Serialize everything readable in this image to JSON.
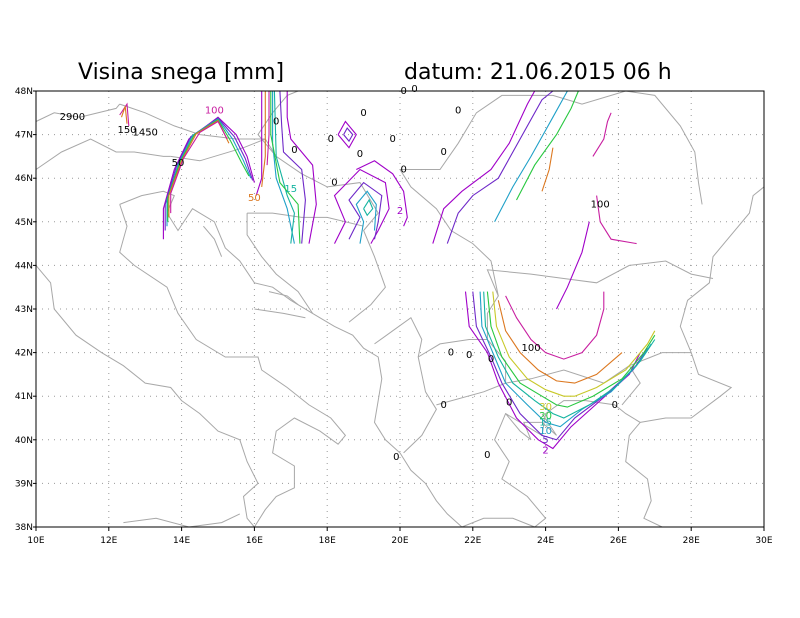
{
  "title": {
    "left": "Visina snega [mm]",
    "right": "datum: 21.06.2015   06 h"
  },
  "colors": {
    "c2": "#a000c8",
    "c5": "#6e28c8",
    "c10": "#1fa0c8",
    "c15": "#14b4a0",
    "c20": "#28c840",
    "c30": "#c8c828",
    "c50": "#dc7820",
    "c100": "#c81ea0",
    "coast": "#a8a8a8",
    "grid": "#9a9a9a",
    "frame": "#000000"
  },
  "axes": {
    "lon_labels": [
      "10E",
      "12E",
      "14E",
      "16E",
      "18E",
      "20E",
      "22E",
      "24E",
      "26E",
      "28E",
      "30E"
    ],
    "lat_labels": [
      "38N",
      "39N",
      "40N",
      "41N",
      "42N",
      "43N",
      "44N",
      "45N",
      "46N",
      "47N",
      "48N"
    ]
  },
  "contour_labels": [
    {
      "text": "2900",
      "lon": 11.0,
      "lat": 47.4,
      "color": "#000000"
    },
    {
      "text": "150",
      "lon": 12.5,
      "lat": 47.1,
      "color": "#000000"
    },
    {
      "text": "1450",
      "lon": 13.0,
      "lat": 47.05,
      "color": "#000000"
    },
    {
      "text": "100",
      "lon": 14.9,
      "lat": 47.55,
      "color": "#c81ea0"
    },
    {
      "text": "50",
      "lon": 13.9,
      "lat": 46.35,
      "color": "#000000"
    },
    {
      "text": "50",
      "lon": 16.0,
      "lat": 45.55,
      "color": "#dc7820"
    },
    {
      "text": "15",
      "lon": 17.0,
      "lat": 45.75,
      "color": "#14b4a0"
    },
    {
      "text": "0",
      "lon": 16.6,
      "lat": 47.3,
      "color": "#000000"
    },
    {
      "text": "0",
      "lon": 17.1,
      "lat": 46.65,
      "color": "#000000"
    },
    {
      "text": "0",
      "lon": 18.1,
      "lat": 46.9,
      "color": "#000000"
    },
    {
      "text": "0",
      "lon": 18.9,
      "lat": 46.55,
      "color": "#000000"
    },
    {
      "text": "0",
      "lon": 19.0,
      "lat": 47.5,
      "color": "#000000"
    },
    {
      "text": "0",
      "lon": 19.8,
      "lat": 46.9,
      "color": "#000000"
    },
    {
      "text": "0",
      "lon": 20.1,
      "lat": 48.0,
      "color": "#000000"
    },
    {
      "text": "0",
      "lon": 20.4,
      "lat": 48.05,
      "color": "#000000"
    },
    {
      "text": "0",
      "lon": 21.6,
      "lat": 47.55,
      "color": "#000000"
    },
    {
      "text": "0",
      "lon": 21.2,
      "lat": 46.6,
      "color": "#000000"
    },
    {
      "text": "0",
      "lon": 20.1,
      "lat": 46.2,
      "color": "#000000"
    },
    {
      "text": "0",
      "lon": 18.2,
      "lat": 45.9,
      "color": "#000000"
    },
    {
      "text": "2",
      "lon": 20.0,
      "lat": 45.25,
      "color": "#a000c8"
    },
    {
      "text": "100",
      "lon": 25.5,
      "lat": 45.4,
      "color": "#000000"
    },
    {
      "text": "100",
      "lon": 23.6,
      "lat": 42.1,
      "color": "#000000"
    },
    {
      "text": "0",
      "lon": 21.4,
      "lat": 42.0,
      "color": "#000000"
    },
    {
      "text": "0",
      "lon": 21.9,
      "lat": 41.95,
      "color": "#000000"
    },
    {
      "text": "0",
      "lon": 22.5,
      "lat": 41.85,
      "color": "#000000"
    },
    {
      "text": "0",
      "lon": 23.0,
      "lat": 40.85,
      "color": "#000000"
    },
    {
      "text": "0",
      "lon": 21.2,
      "lat": 40.8,
      "color": "#000000"
    },
    {
      "text": "0",
      "lon": 19.9,
      "lat": 39.6,
      "color": "#000000"
    },
    {
      "text": "0",
      "lon": 22.4,
      "lat": 39.65,
      "color": "#000000"
    },
    {
      "text": "0",
      "lon": 25.9,
      "lat": 40.8,
      "color": "#000000"
    },
    {
      "text": "30",
      "lon": 24.0,
      "lat": 40.75,
      "color": "#c8c828"
    },
    {
      "text": "20",
      "lon": 24.0,
      "lat": 40.55,
      "color": "#28c840"
    },
    {
      "text": "15",
      "lon": 24.0,
      "lat": 40.4,
      "color": "#14b4a0"
    },
    {
      "text": "10",
      "lon": 24.0,
      "lat": 40.2,
      "color": "#1fa0c8"
    },
    {
      "text": "5",
      "lon": 24.0,
      "lat": 40.0,
      "color": "#6e28c8"
    },
    {
      "text": "2",
      "lon": 24.0,
      "lat": 39.75,
      "color": "#a000c8"
    }
  ]
}
